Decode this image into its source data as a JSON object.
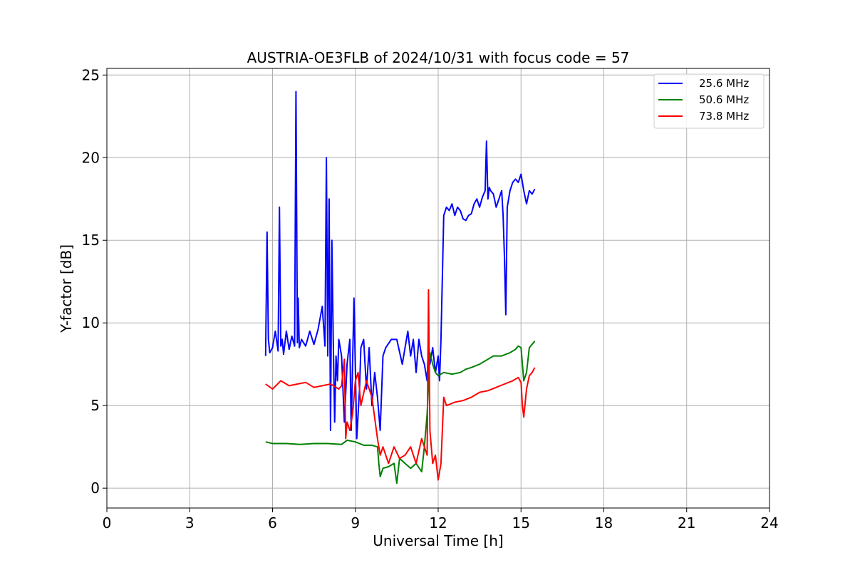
{
  "chart_data": {
    "type": "line",
    "title": "AUSTRIA-OE3FLB of 2024/10/31 with focus code = 57",
    "xlabel": "Universal Time [h]",
    "ylabel": "Y-factor [dB]",
    "xlim": [
      0,
      24
    ],
    "ylim": [
      -1.2,
      25.4
    ],
    "xticks": [
      0,
      3,
      6,
      9,
      12,
      15,
      18,
      21,
      24
    ],
    "yticks": [
      0,
      5,
      10,
      15,
      20,
      25
    ],
    "grid": true,
    "legend_position": "top-right",
    "series": [
      {
        "name": "25.6 MHz",
        "color": "#0000ff",
        "x": [
          5.75,
          5.8,
          5.85,
          5.9,
          6.0,
          6.1,
          6.2,
          6.25,
          6.3,
          6.35,
          6.4,
          6.5,
          6.6,
          6.7,
          6.8,
          6.85,
          6.9,
          6.93,
          6.97,
          7.05,
          7.2,
          7.35,
          7.5,
          7.65,
          7.8,
          7.9,
          7.95,
          8.0,
          8.05,
          8.1,
          8.15,
          8.2,
          8.25,
          8.3,
          8.35,
          8.4,
          8.5,
          8.6,
          8.7,
          8.8,
          8.85,
          8.95,
          9.05,
          9.15,
          9.2,
          9.3,
          9.4,
          9.5,
          9.6,
          9.7,
          9.8,
          9.9,
          10.0,
          10.1,
          10.3,
          10.5,
          10.7,
          10.9,
          11.0,
          11.1,
          11.2,
          11.3,
          11.4,
          11.5,
          11.6,
          11.65,
          11.7,
          11.8,
          11.9,
          12.0,
          12.05,
          12.1,
          12.2,
          12.3,
          12.4,
          12.5,
          12.6,
          12.7,
          12.8,
          12.9,
          13.0,
          13.1,
          13.2,
          13.3,
          13.4,
          13.5,
          13.6,
          13.7,
          13.75,
          13.8,
          13.85,
          13.9,
          14.0,
          14.1,
          14.2,
          14.3,
          14.35,
          14.4,
          14.45,
          14.5,
          14.6,
          14.7,
          14.8,
          14.9,
          15.0,
          15.1,
          15.2,
          15.3,
          15.4,
          15.5
        ],
        "values": [
          8.0,
          15.5,
          9.0,
          8.2,
          8.5,
          9.5,
          8.3,
          17.0,
          8.6,
          9.0,
          8.1,
          9.5,
          8.4,
          9.2,
          8.6,
          24.0,
          8.8,
          11.5,
          8.5,
          9.0,
          8.6,
          9.5,
          8.7,
          9.6,
          11.0,
          8.6,
          20.0,
          8.0,
          17.5,
          3.5,
          15.0,
          9.0,
          4.0,
          8.0,
          6.5,
          9.0,
          8.0,
          4.0,
          7.5,
          9.0,
          3.5,
          11.5,
          3.0,
          6.0,
          8.5,
          9.0,
          6.0,
          8.5,
          5.0,
          7.0,
          5.5,
          3.5,
          8.0,
          8.5,
          9.0,
          9.0,
          7.5,
          9.5,
          8.0,
          9.0,
          7.0,
          9.0,
          8.0,
          7.5,
          6.5,
          9.0,
          7.5,
          8.5,
          7.0,
          8.0,
          6.5,
          9.0,
          16.5,
          17.0,
          16.8,
          17.2,
          16.5,
          17.0,
          16.8,
          16.3,
          16.2,
          16.5,
          16.6,
          17.2,
          17.5,
          17.0,
          17.6,
          18.0,
          21.0,
          17.5,
          18.2,
          18.0,
          17.8,
          17.0,
          17.5,
          18.0,
          16.5,
          14.0,
          10.5,
          17.0,
          18.0,
          18.5,
          18.7,
          18.5,
          19.0,
          18.0,
          17.2,
          18.0,
          17.8,
          18.1
        ]
      },
      {
        "name": "50.6 MHz",
        "color": "#008000",
        "x": [
          5.75,
          6.0,
          6.5,
          7.0,
          7.5,
          8.0,
          8.5,
          8.7,
          9.0,
          9.3,
          9.6,
          9.8,
          9.85,
          9.9,
          10.0,
          10.2,
          10.4,
          10.5,
          10.6,
          10.8,
          11.0,
          11.2,
          11.4,
          11.5,
          11.6,
          11.7,
          11.8,
          11.9,
          12.0,
          12.2,
          12.5,
          12.8,
          13.0,
          13.2,
          13.5,
          13.8,
          14.0,
          14.3,
          14.6,
          14.8,
          14.9,
          15.0,
          15.05,
          15.1,
          15.2,
          15.3,
          15.5
        ],
        "values": [
          2.8,
          2.7,
          2.7,
          2.65,
          2.7,
          2.7,
          2.65,
          2.9,
          2.8,
          2.6,
          2.6,
          2.5,
          1.5,
          0.7,
          1.2,
          1.3,
          1.5,
          0.3,
          1.8,
          1.5,
          1.2,
          1.5,
          1.0,
          2.5,
          4.5,
          8.2,
          7.5,
          7.0,
          6.8,
          7.0,
          6.9,
          7.0,
          7.2,
          7.3,
          7.5,
          7.8,
          8.0,
          8.0,
          8.2,
          8.4,
          8.6,
          8.5,
          7.5,
          6.5,
          7.0,
          8.5,
          8.9
        ]
      },
      {
        "name": "73.8 MHz",
        "color": "#ff0000",
        "x": [
          5.75,
          6.0,
          6.3,
          6.6,
          6.9,
          7.2,
          7.5,
          7.8,
          8.1,
          8.4,
          8.5,
          8.6,
          8.65,
          8.7,
          8.8,
          8.9,
          9.0,
          9.1,
          9.2,
          9.4,
          9.6,
          9.8,
          9.9,
          10.0,
          10.2,
          10.4,
          10.6,
          10.8,
          11.0,
          11.2,
          11.4,
          11.6,
          11.65,
          11.7,
          11.8,
          11.9,
          12.0,
          12.1,
          12.2,
          12.3,
          12.6,
          12.9,
          13.2,
          13.5,
          13.8,
          14.1,
          14.4,
          14.7,
          14.9,
          15.0,
          15.05,
          15.1,
          15.2,
          15.3,
          15.4,
          15.5
        ],
        "values": [
          6.3,
          6.0,
          6.5,
          6.2,
          6.3,
          6.4,
          6.1,
          6.2,
          6.3,
          6.0,
          6.2,
          7.8,
          3.0,
          4.0,
          3.5,
          4.5,
          6.5,
          7.0,
          5.0,
          6.5,
          5.5,
          3.0,
          2.0,
          2.5,
          1.5,
          2.5,
          1.8,
          2.0,
          2.5,
          1.5,
          3.0,
          2.0,
          12.0,
          3.5,
          1.5,
          2.0,
          0.5,
          1.5,
          5.5,
          5.0,
          5.2,
          5.3,
          5.5,
          5.8,
          5.9,
          6.1,
          6.3,
          6.5,
          6.7,
          6.4,
          5.0,
          4.3,
          6.0,
          6.8,
          7.0,
          7.3
        ]
      }
    ]
  }
}
